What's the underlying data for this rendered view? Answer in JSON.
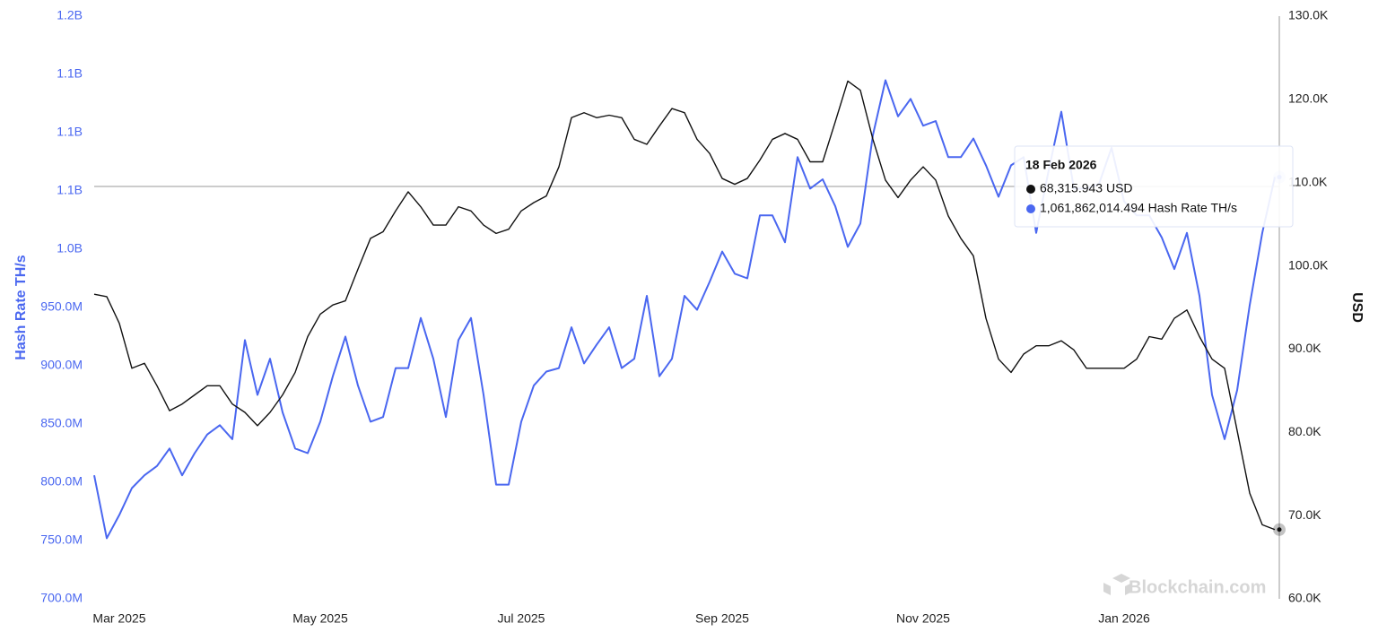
{
  "chart_data": {
    "type": "line",
    "y_label": "Hash Rate TH/s",
    "y2_label": "USD",
    "categories": [
      null,
      null,
      "Mar 2025",
      null,
      null,
      null,
      null,
      null,
      null,
      null,
      null,
      null,
      null,
      null,
      null,
      null,
      null,
      null,
      "May 2025",
      null,
      null,
      null,
      null,
      null,
      null,
      null,
      null,
      null,
      null,
      null,
      null,
      null,
      null,
      null,
      "Jul 2025",
      null,
      null,
      null,
      null,
      null,
      null,
      null,
      null,
      null,
      null,
      null,
      null,
      null,
      null,
      null,
      "Sep 2025",
      null,
      null,
      null,
      null,
      null,
      null,
      null,
      null,
      null,
      null,
      null,
      null,
      null,
      null,
      null,
      "Nov 2025",
      null,
      null,
      null,
      null,
      null,
      null,
      null,
      null,
      null,
      null,
      null,
      null,
      null,
      null,
      null,
      "Jan 2026",
      null,
      null,
      null,
      null,
      null,
      null,
      null,
      null,
      null,
      null,
      null,
      null
    ],
    "series": [
      {
        "color": "#4a67f0",
        "axis": "y",
        "values": [
          806000000,
          752000000,
          772000000,
          795000000,
          806000000,
          814000000,
          829000000,
          806000000,
          825000000,
          841000000,
          849000000,
          837000000,
          922000000,
          875000000,
          906000000,
          860000000,
          829000000,
          825000000,
          852000000,
          891000000,
          925000000,
          883000000,
          852000000,
          856000000,
          898000000,
          898000000,
          941000000,
          906000000,
          856000000,
          922000000,
          941000000,
          875000000,
          798000000,
          798000000,
          852000000,
          883000000,
          895000000,
          898000000,
          933000000,
          902000000,
          918000000,
          933000000,
          898000000,
          906000000,
          960000000,
          891000000,
          906000000,
          960000000,
          948000000,
          972000000,
          998000000,
          979000000,
          975000000,
          1029000000,
          1029000000,
          1006000000,
          1079000000,
          1052000000,
          1060000000,
          1037000000,
          1002000000,
          1022000000,
          1098000000,
          1145000000,
          1114000000,
          1129000000,
          1106000000,
          1110000000,
          1079000000,
          1079000000,
          1095000000,
          1072000000,
          1045000000,
          1072000000,
          1079000000,
          1014000000,
          1068000000,
          1118000000,
          1052000000,
          1052000000,
          1056000000,
          1087000000,
          1041000000,
          1029000000,
          1029000000,
          1010000000,
          983000000,
          1014000000,
          960000000,
          875000000,
          837000000,
          879000000,
          952000000,
          1014000000,
          1061862014.494
        ]
      },
      {
        "color": "#111111",
        "axis": "y2",
        "values": [
          96600,
          96300,
          93100,
          87700,
          88300,
          85600,
          82600,
          83400,
          84500,
          85600,
          85600,
          83400,
          82400,
          80800,
          82400,
          84500,
          87200,
          91500,
          94200,
          95300,
          95800,
          99600,
          103300,
          104100,
          106600,
          108900,
          107100,
          104900,
          104900,
          107100,
          106600,
          104900,
          103900,
          104400,
          106600,
          107600,
          108400,
          111900,
          117800,
          118400,
          117800,
          118100,
          117800,
          115200,
          114600,
          116800,
          118900,
          118400,
          115200,
          113500,
          110500,
          109800,
          110500,
          112700,
          115200,
          115900,
          115200,
          112500,
          112500,
          117300,
          122200,
          121100,
          115200,
          110300,
          108200,
          110300,
          111900,
          110300,
          106000,
          103300,
          101200,
          93700,
          88800,
          87200,
          89400,
          90400,
          90400,
          91000,
          89900,
          87700,
          87700,
          87700,
          87700,
          88800,
          91500,
          91200,
          93700,
          94700,
          91500,
          88800,
          87700,
          80200,
          72700,
          68900,
          68315.943
        ]
      }
    ],
    "ylim": [
      700000000,
      1200000000
    ],
    "yticks": [
      {
        "value": 700000000,
        "label": "700.0M"
      },
      {
        "value": 750000000,
        "label": "750.0M"
      },
      {
        "value": 800000000,
        "label": "800.0M"
      },
      {
        "value": 850000000,
        "label": "850.0M"
      },
      {
        "value": 900000000,
        "label": "900.0M"
      },
      {
        "value": 950000000,
        "label": "950.0M"
      },
      {
        "value": 1000000000,
        "label": "1.0B"
      },
      {
        "value": 1050000000,
        "label": "1.1B"
      },
      {
        "value": 1100000000,
        "label": "1.1B"
      },
      {
        "value": 1150000000,
        "label": "1.1B"
      },
      {
        "value": 1200000000,
        "label": "1.2B"
      }
    ],
    "y2lim": [
      60000,
      130000
    ],
    "y2ticks": [
      {
        "value": 60000,
        "label": "60.0K"
      },
      {
        "value": 70000,
        "label": "70.0K"
      },
      {
        "value": 80000,
        "label": "80.0K"
      },
      {
        "value": 90000,
        "label": "90.0K"
      },
      {
        "value": 100000,
        "label": "100.0K"
      },
      {
        "value": 110000,
        "label": "110.0K"
      },
      {
        "value": 120000,
        "label": "120.0K"
      },
      {
        "value": 130000,
        "label": "130.0K"
      }
    ],
    "tooltip": {
      "title": "18 Feb 2026",
      "lines": [
        "68,315.943 USD",
        "1,061,862,014.494 Hash Rate TH/s"
      ]
    },
    "watermark": "Blockchain.com"
  }
}
